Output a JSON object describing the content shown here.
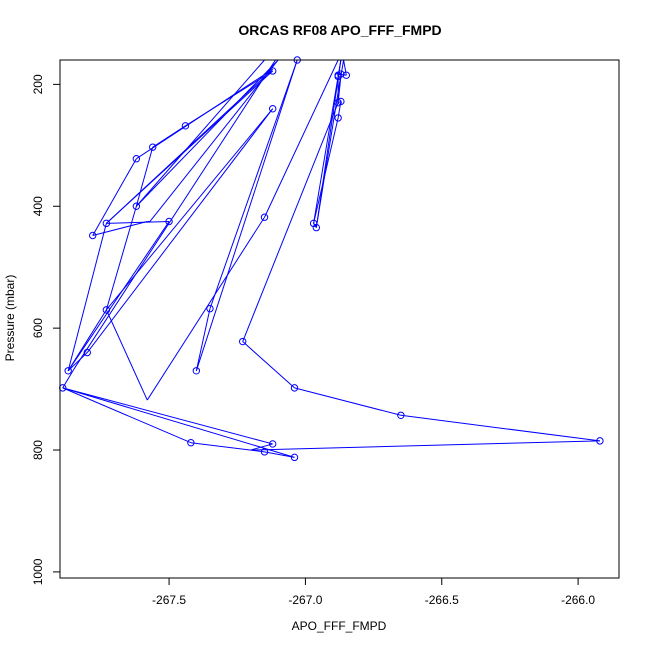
{
  "chart_data": {
    "type": "line",
    "title": "ORCAS RF08 APO_FFF_FMPD",
    "xlabel": "APO_FFF_FMPD",
    "ylabel": "Pressure (mbar)",
    "xlim": [
      -267.9,
      -265.85
    ],
    "ylim": [
      1010,
      160
    ],
    "y_reversed": true,
    "x_ticks": [
      -267.5,
      -267.0,
      -266.5,
      -266.0
    ],
    "x_tick_labels": [
      "-267.5",
      "-267.0",
      "-266.5",
      "-266.0"
    ],
    "y_ticks": [
      200,
      400,
      600,
      800,
      1000
    ],
    "y_tick_labels": [
      "200",
      "400",
      "600",
      "800",
      "1000"
    ],
    "grid": false,
    "legend": "none",
    "colors": {
      "series": "#0000ff"
    },
    "series": [
      {
        "name": "",
        "x": [
          -266.86,
          -266.87,
          -266.88,
          -266.87,
          -266.86,
          -266.85,
          -266.85,
          -266.84,
          -266.85,
          -267.22,
          -267.05,
          -267.28,
          -267.45,
          -267.6,
          -267.72,
          -267.82,
          -267.86,
          -267.5,
          -267.12,
          -266.88,
          -266.88,
          -266.88,
          -266.88,
          -266.87,
          -266.97,
          -266.96,
          -266.87,
          -266.88,
          -267.03,
          -267.4,
          -267.89,
          -267.42,
          -267.15,
          -267.12,
          -267.89,
          -267.04,
          -267.15,
          -266.65,
          -265.92,
          -267.04,
          -267.22,
          -267.35,
          -266.86,
          -267.12,
          -267.73,
          -267.8,
          -267.6,
          -267.07,
          -267.73,
          -267.86,
          -267.05,
          -267.12,
          -267.82,
          -267.78,
          -267.62,
          -267.44,
          -267.1,
          -267.4,
          -267.56,
          -267.72,
          -267.12,
          -266.86
        ],
        "y": [
          160,
          175,
          185,
          185,
          186,
          180,
          178,
          175,
          160,
          160,
          160,
          155,
          155,
          160,
          162,
          165,
          170,
          160,
          155,
          155,
          183,
          183,
          182,
          182,
          187,
          230,
          228,
          255,
          160,
          160,
          160,
          155,
          155,
          160,
          155,
          160,
          160,
          160,
          160,
          160,
          160,
          160,
          160,
          160,
          160,
          160,
          160,
          160,
          160,
          160,
          160,
          160,
          160,
          160,
          160,
          160,
          160,
          160,
          160,
          160,
          160,
          160
        ]
      }
    ],
    "path": [
      [
        -266.86,
        160
      ],
      [
        -266.87,
        187
      ],
      [
        -266.88,
        230
      ],
      [
        -266.87,
        228
      ],
      [
        -266.88,
        255
      ],
      [
        -266.97,
        428
      ],
      [
        -266.96,
        435
      ],
      [
        -266.87,
        185
      ],
      [
        -266.88,
        183
      ],
      [
        -266.85,
        185
      ],
      [
        -266.86,
        160
      ],
      [
        -267.03,
        160
      ],
      [
        -267.4,
        670
      ],
      [
        -267.35,
        568
      ],
      [
        -267.03,
        160
      ],
      [
        -266.87,
        160
      ],
      [
        -266.96,
        435
      ],
      [
        -266.97,
        428
      ],
      [
        -266.87,
        160
      ],
      [
        -266.88,
        160
      ],
      [
        -267.15,
        418
      ],
      [
        -267.58,
        718
      ],
      [
        -267.73,
        570
      ],
      [
        -267.12,
        240
      ],
      [
        -267.8,
        640
      ],
      [
        -267.87,
        670
      ],
      [
        -267.73,
        428
      ],
      [
        -267.12,
        178
      ],
      [
        -267.44,
        268
      ],
      [
        -267.56,
        303
      ],
      [
        -267.62,
        400
      ],
      [
        -267.1,
        160
      ],
      [
        -267.57,
        425
      ],
      [
        -267.58,
        425
      ],
      [
        -267.78,
        448
      ],
      [
        -267.62,
        322
      ],
      [
        -267.12,
        175
      ],
      [
        -267.73,
        428
      ],
      [
        -267.5,
        425
      ],
      [
        -267.87,
        670
      ],
      [
        -267.73,
        570
      ],
      [
        -267.62,
        400
      ],
      [
        -267.15,
        160
      ],
      [
        -267.11,
        160
      ],
      [
        -267.85,
        668
      ],
      [
        -267.89,
        698
      ],
      [
        -267.42,
        788
      ],
      [
        -267.15,
        803
      ],
      [
        -267.04,
        812
      ],
      [
        -267.89,
        698
      ],
      [
        -267.12,
        790
      ],
      [
        -267.2,
        800
      ],
      [
        -265.92,
        785
      ],
      [
        -266.65,
        743
      ],
      [
        -267.04,
        698
      ],
      [
        -267.23,
        622
      ],
      [
        -266.88,
        230
      ],
      [
        -266.88,
        183
      ]
    ],
    "points": [
      [
        -266.87,
        183
      ],
      [
        -266.88,
        185
      ],
      [
        -266.88,
        187
      ],
      [
        -266.85,
        185
      ],
      [
        -266.88,
        230
      ],
      [
        -266.87,
        228
      ],
      [
        -266.88,
        255
      ],
      [
        -266.97,
        428
      ],
      [
        -266.96,
        435
      ],
      [
        -267.03,
        160
      ],
      [
        -267.12,
        178
      ],
      [
        -267.12,
        240
      ],
      [
        -267.15,
        418
      ],
      [
        -267.35,
        568
      ],
      [
        -267.4,
        670
      ],
      [
        -267.23,
        622
      ],
      [
        -267.04,
        698
      ],
      [
        -266.65,
        743
      ],
      [
        -265.92,
        785
      ],
      [
        -267.04,
        812
      ],
      [
        -267.15,
        803
      ],
      [
        -267.12,
        790
      ],
      [
        -267.42,
        788
      ],
      [
        -267.89,
        698
      ],
      [
        -267.87,
        670
      ],
      [
        -267.8,
        640
      ],
      [
        -267.73,
        570
      ],
      [
        -267.5,
        425
      ],
      [
        -267.62,
        400
      ],
      [
        -267.73,
        428
      ],
      [
        -267.78,
        448
      ],
      [
        -267.62,
        322
      ],
      [
        -267.56,
        303
      ],
      [
        -267.44,
        268
      ]
    ]
  }
}
